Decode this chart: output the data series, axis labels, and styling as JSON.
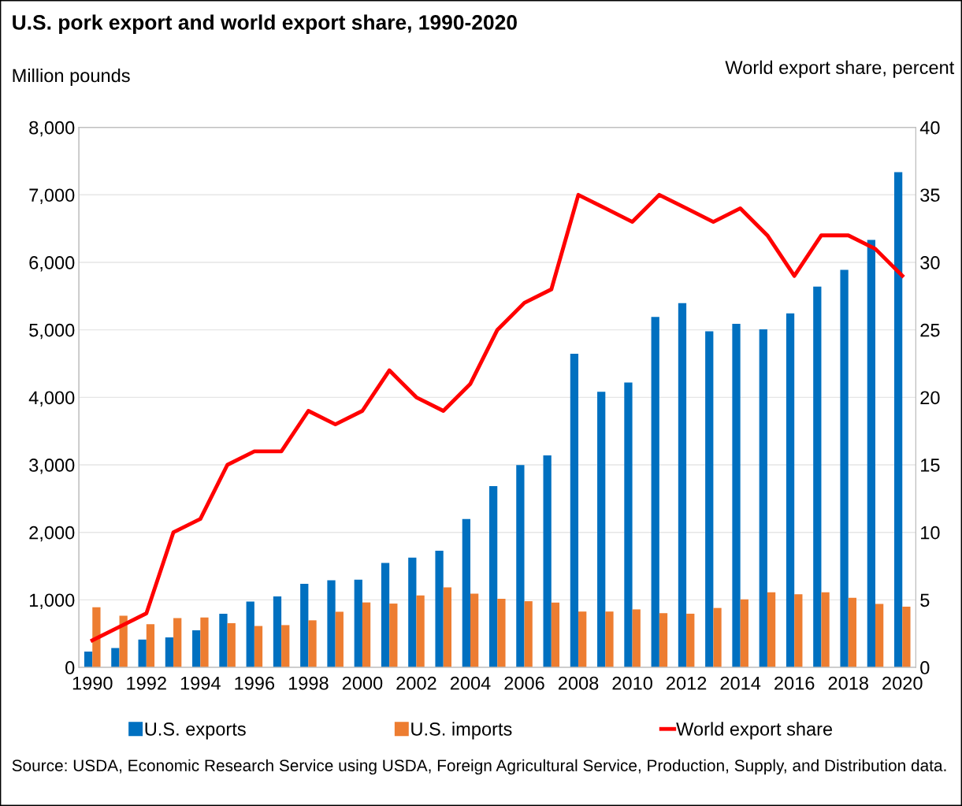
{
  "chart_data": {
    "type": "bar",
    "title": "U.S. pork export and world export share, 1990-2020",
    "ylabel": "Million pounds",
    "y2label": "World export share, percent",
    "x": [
      1990,
      1991,
      1992,
      1993,
      1994,
      1995,
      1996,
      1997,
      1998,
      1999,
      2000,
      2001,
      2002,
      2003,
      2004,
      2005,
      2006,
      2007,
      2008,
      2009,
      2010,
      2011,
      2012,
      2013,
      2014,
      2015,
      2016,
      2017,
      2018,
      2019,
      2020
    ],
    "series": [
      {
        "name": "U.S. exports",
        "color": "#0070c0",
        "values": [
          235,
          286,
          412,
          445,
          550,
          794,
          975,
          1050,
          1239,
          1290,
          1298,
          1546,
          1626,
          1727,
          2197,
          2685,
          2996,
          3141,
          4647,
          4084,
          4221,
          5193,
          5397,
          4980,
          5088,
          5008,
          5245,
          5642,
          5888,
          6332,
          7336
        ]
      },
      {
        "name": "U.S. imports",
        "color": "#ed7d31",
        "values": [
          891,
          765,
          639,
          731,
          739,
          655,
          613,
          626,
          697,
          824,
          962,
          945,
          1067,
          1185,
          1092,
          1017,
          980,
          960,
          827,
          827,
          859,
          803,
          795,
          880,
          1008,
          1112,
          1084,
          1112,
          1032,
          940,
          900
        ]
      },
      {
        "name": "World export share",
        "type": "line",
        "axis": "y2",
        "color": "#ff0000",
        "values": [
          2,
          3,
          4,
          10,
          11,
          15,
          16,
          16,
          19,
          18,
          19,
          22,
          20,
          19,
          21,
          25,
          27,
          28,
          35,
          34,
          33,
          35,
          34,
          33,
          34,
          32,
          29,
          32,
          32,
          31,
          29
        ]
      }
    ],
    "xlim": [
      1989.5,
      2020.5
    ],
    "xticks": [
      1990,
      1992,
      1994,
      1996,
      1998,
      2000,
      2002,
      2004,
      2006,
      2008,
      2010,
      2012,
      2014,
      2016,
      2018,
      2020
    ],
    "ylim": [
      0,
      8000
    ],
    "yticks": [
      {
        "value": 0,
        "label": "0"
      },
      {
        "value": 1000,
        "label": "1,000"
      },
      {
        "value": 2000,
        "label": "2,000"
      },
      {
        "value": 3000,
        "label": "3,000"
      },
      {
        "value": 4000,
        "label": "4,000"
      },
      {
        "value": 5000,
        "label": "5,000"
      },
      {
        "value": 6000,
        "label": "6,000"
      },
      {
        "value": 7000,
        "label": "7,000"
      },
      {
        "value": 8000,
        "label": "8,000"
      }
    ],
    "y2lim": [
      0,
      40
    ],
    "y2ticks": [
      0,
      5,
      10,
      15,
      20,
      25,
      30,
      35,
      40
    ],
    "grid": "y",
    "legend": "bottom",
    "annotations": [
      "Source: USDA, Economic Research Service using USDA, Foreign Agricultural Service, Production, Supply, and Distribution data."
    ]
  }
}
